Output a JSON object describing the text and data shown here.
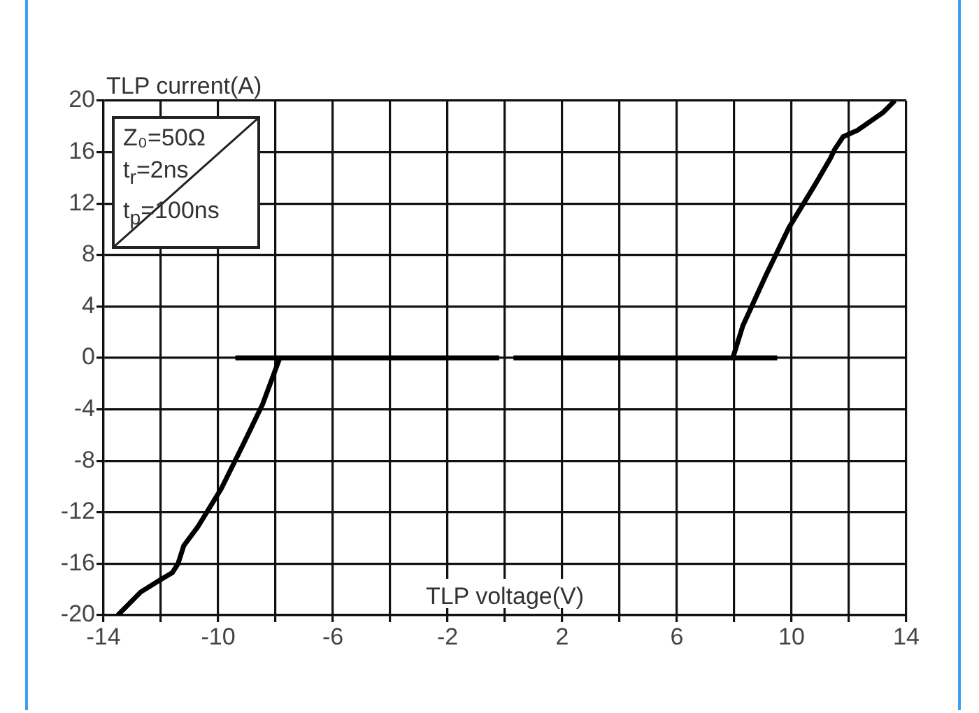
{
  "chart_data": {
    "type": "line",
    "xlabel": "TLP voltage(V)",
    "ylabel": "TLP current(A)",
    "annotations": [
      "Z₀=50Ω",
      "t$_{r}$=2ns",
      "t$_{p}$=100ns"
    ],
    "xlim": [
      -14,
      14
    ],
    "ylim": [
      -20,
      20
    ],
    "xticks": [
      -14,
      {
        "value": -12,
        "label": null
      },
      -10,
      {
        "value": -8,
        "label": null
      },
      -6,
      {
        "value": -4,
        "label": null
      },
      -2,
      {
        "value": 0,
        "label": null
      },
      2,
      {
        "value": 4,
        "label": null
      },
      6,
      {
        "value": 8,
        "label": null
      },
      10,
      {
        "value": 12,
        "label": null
      },
      14
    ],
    "yticks": [
      -20,
      -16,
      -12,
      -8,
      -4,
      0,
      4,
      8,
      12,
      16,
      20
    ],
    "grid": true,
    "legend": false,
    "marker": "none",
    "line_style": "solid",
    "series": [
      {
        "color": "#000000",
        "x": [
          -9.4,
          -0.2
        ],
        "values": [
          0,
          0
        ]
      },
      {
        "color": "#000000",
        "x": [
          0.3,
          9.5
        ],
        "values": [
          0,
          0
        ]
      },
      {
        "color": "#000000",
        "x": [
          7.95,
          8.3,
          9.1,
          9.9,
          10.8,
          11.35,
          11.5,
          11.8,
          12.3,
          13.2,
          13.6
        ],
        "values": [
          0,
          2.5,
          6.4,
          10.1,
          13.4,
          15.5,
          16.2,
          17.2,
          17.7,
          19.1,
          20
        ]
      },
      {
        "color": "#000000",
        "x": [
          -7.85,
          -8.45,
          -9.1,
          -9.9,
          -10.7,
          -11.2,
          -11.4,
          -11.6,
          -12.05,
          -12.7,
          -13.5
        ],
        "values": [
          0,
          -3.6,
          -6.6,
          -10.2,
          -13.1,
          -14.6,
          -16,
          -16.7,
          -17.3,
          -18.2,
          -20
        ]
      }
    ]
  }
}
